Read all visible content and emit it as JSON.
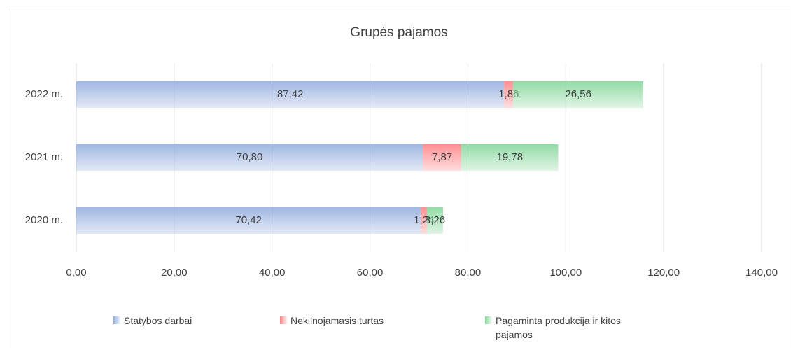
{
  "chart_data": {
    "type": "stacked-bar-horizontal",
    "title": "Grupės pajamos",
    "categories": [
      "2022 m.",
      "2021 m.",
      "2020 m."
    ],
    "series": [
      {
        "name": "Statybos darbai",
        "color": "#8faadc",
        "values": [
          87.42,
          70.8,
          70.42
        ],
        "value_labels": [
          "87,42",
          "70,80",
          "70,42"
        ]
      },
      {
        "name": "Nekilnojamasis turtas",
        "color": "#ff7c80",
        "values": [
          1.86,
          7.87,
          1.24
        ],
        "value_labels": [
          "1,86",
          "7,87",
          "1,24"
        ]
      },
      {
        "name": "Pagaminta produkcija ir kitos pajamos",
        "color": "#7fd596",
        "values": [
          26.56,
          19.78,
          3.26
        ],
        "value_labels": [
          "26,56",
          "19,78",
          "3,26"
        ]
      }
    ],
    "xlim": [
      0,
      140
    ],
    "xticks": [
      {
        "value": 0,
        "label": "0,00"
      },
      {
        "value": 20,
        "label": "20,00"
      },
      {
        "value": 40,
        "label": "40,00"
      },
      {
        "value": 60,
        "label": "60,00"
      },
      {
        "value": 80,
        "label": "80,00"
      },
      {
        "value": 100,
        "label": "100,00"
      },
      {
        "value": 120,
        "label": "120,00"
      },
      {
        "value": 140,
        "label": "140,00"
      }
    ],
    "grid": true,
    "legend": "bottom"
  }
}
